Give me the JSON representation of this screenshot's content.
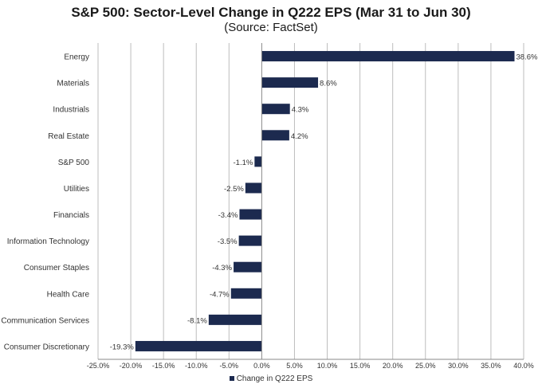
{
  "chart_data": {
    "type": "bar",
    "orientation": "horizontal",
    "title": "S&P 500: Sector-Level Change in Q222 EPS (Mar 31 to Jun 30)",
    "subtitle": "(Source: FactSet)",
    "categories": [
      "Energy",
      "Materials",
      "Industrials",
      "Real Estate",
      "S&P 500",
      "Utilities",
      "Financials",
      "Information Technology",
      "Consumer Staples",
      "Health Care",
      "Communication Services",
      "Consumer Discretionary"
    ],
    "series": [
      {
        "name": "Change in Q222 EPS",
        "color": "#1c2a4f",
        "values": [
          38.6,
          8.6,
          4.3,
          4.2,
          -1.1,
          -2.5,
          -3.4,
          -3.5,
          -4.3,
          -4.7,
          -8.1,
          -19.3
        ],
        "labels": [
          "38.6%",
          "8.6%",
          "4.3%",
          "4.2%",
          "-1.1%",
          "-2.5%",
          "-3.4%",
          "-3.5%",
          "-4.3%",
          "-4.7%",
          "-8.1%",
          "-19.3%"
        ]
      }
    ],
    "xlim": [
      -25,
      40
    ],
    "xticks": [
      -25,
      -20,
      -15,
      -10,
      -5,
      0,
      5,
      10,
      15,
      20,
      25,
      30,
      35,
      40
    ],
    "xtick_labels": [
      "-25.0%",
      "-20.0%",
      "-15.0%",
      "-10.0%",
      "-5.0%",
      "0.0%",
      "5.0%",
      "10.0%",
      "15.0%",
      "20.0%",
      "25.0%",
      "30.0%",
      "35.0%",
      "40.0%"
    ],
    "grid": "vertical",
    "legend": "bottom"
  }
}
